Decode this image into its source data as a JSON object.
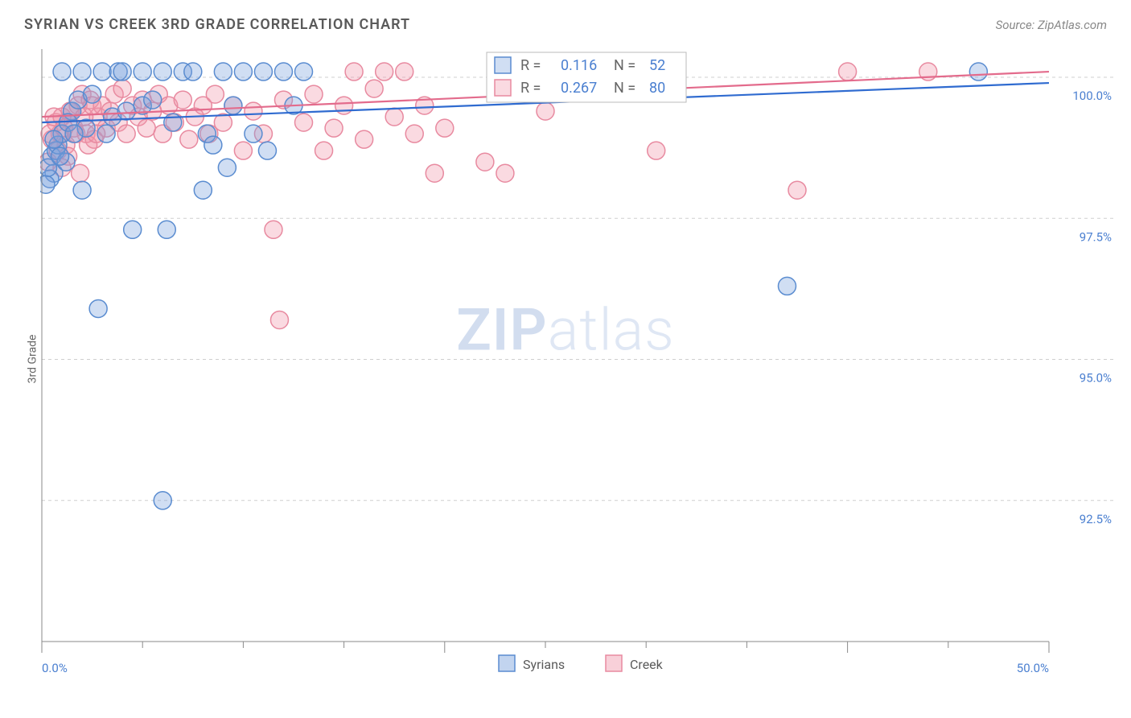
{
  "title": "SYRIAN VS CREEK 3RD GRADE CORRELATION CHART",
  "source": "Source: ZipAtlas.com",
  "ylabel": "3rd Grade",
  "watermark_a": "ZIP",
  "watermark_b": "atlas",
  "chart": {
    "type": "scatter",
    "xlim": [
      0,
      50
    ],
    "ylim": [
      90,
      100.5
    ],
    "x_ticks_major": [
      0,
      20,
      40,
      50
    ],
    "x_ticks_minor": [
      5,
      10,
      15,
      25,
      30,
      35,
      45
    ],
    "x_tick_labels": [
      {
        "v": 0,
        "t": "0.0%"
      },
      {
        "v": 50,
        "t": "50.0%"
      }
    ],
    "y_gridlines": [
      92.5,
      95.0,
      97.5,
      100.0
    ],
    "y_tick_labels": [
      {
        "v": 92.5,
        "t": "92.5%"
      },
      {
        "v": 95.0,
        "t": "95.0%"
      },
      {
        "v": 97.5,
        "t": "97.5%"
      },
      {
        "v": 100.0,
        "t": "100.0%"
      }
    ],
    "background_color": "#ffffff",
    "grid_color": "#d0d0d0",
    "axis_color": "#8a8a8a",
    "tick_label_color": "#4a7fd0",
    "marker_radius": 11,
    "marker_stroke_width": 1.5,
    "series": [
      {
        "name": "Syrians",
        "fill": "rgba(120,160,220,0.35)",
        "stroke": "#5a8cd0",
        "line_color": "#2f6bd0",
        "line_width": 2.2,
        "trend": {
          "y_at_xmin": 99.2,
          "y_at_xmax": 99.9
        },
        "R": "0.116",
        "N": "52",
        "points": [
          [
            0.5,
            98.6
          ],
          [
            0.6,
            98.3
          ],
          [
            0.7,
            98.7
          ],
          [
            0.8,
            98.8
          ],
          [
            1.0,
            99.0
          ],
          [
            1.0,
            100.1
          ],
          [
            1.2,
            98.5
          ],
          [
            1.5,
            99.4
          ],
          [
            1.8,
            99.6
          ],
          [
            2.0,
            98.0
          ],
          [
            2.0,
            100.1
          ],
          [
            2.2,
            99.1
          ],
          [
            2.5,
            99.7
          ],
          [
            2.8,
            95.9
          ],
          [
            3.0,
            100.1
          ],
          [
            3.2,
            99.0
          ],
          [
            3.5,
            99.3
          ],
          [
            3.8,
            100.1
          ],
          [
            4.0,
            100.1
          ],
          [
            4.2,
            99.4
          ],
          [
            4.5,
            97.3
          ],
          [
            5.0,
            100.1
          ],
          [
            5.0,
            99.5
          ],
          [
            5.5,
            99.6
          ],
          [
            6.0,
            100.1
          ],
          [
            6.0,
            92.5
          ],
          [
            6.2,
            97.3
          ],
          [
            6.5,
            99.2
          ],
          [
            7.0,
            100.1
          ],
          [
            7.5,
            100.1
          ],
          [
            8.0,
            98.0
          ],
          [
            8.2,
            99.0
          ],
          [
            8.5,
            98.8
          ],
          [
            9.0,
            100.1
          ],
          [
            9.2,
            98.4
          ],
          [
            9.5,
            99.5
          ],
          [
            10.0,
            100.1
          ],
          [
            10.5,
            99.0
          ],
          [
            11.0,
            100.1
          ],
          [
            11.2,
            98.7
          ],
          [
            12.0,
            100.1
          ],
          [
            12.5,
            99.5
          ],
          [
            13.0,
            100.1
          ],
          [
            0.4,
            98.2
          ],
          [
            0.3,
            98.4
          ],
          [
            0.6,
            98.9
          ],
          [
            1.3,
            99.2
          ],
          [
            1.6,
            99.0
          ],
          [
            37.0,
            96.3
          ],
          [
            46.5,
            100.1
          ],
          [
            0.2,
            98.1
          ],
          [
            0.9,
            98.6
          ]
        ]
      },
      {
        "name": "Creek",
        "fill": "rgba(240,150,170,0.35)",
        "stroke": "#e88aa0",
        "line_color": "#e36b8c",
        "line_width": 2.2,
        "trend": {
          "y_at_xmin": 99.3,
          "y_at_xmax": 100.1
        },
        "R": "0.267",
        "N": "80",
        "points": [
          [
            0.3,
            98.5
          ],
          [
            0.5,
            98.9
          ],
          [
            0.7,
            99.2
          ],
          [
            0.9,
            99.0
          ],
          [
            1.0,
            99.3
          ],
          [
            1.2,
            98.8
          ],
          [
            1.4,
            99.4
          ],
          [
            1.6,
            99.1
          ],
          [
            1.8,
            99.5
          ],
          [
            2.0,
            99.7
          ],
          [
            2.2,
            99.0
          ],
          [
            2.4,
            99.6
          ],
          [
            2.6,
            98.9
          ],
          [
            2.8,
            99.3
          ],
          [
            3.0,
            99.5
          ],
          [
            3.2,
            99.1
          ],
          [
            3.4,
            99.4
          ],
          [
            3.6,
            99.7
          ],
          [
            3.8,
            99.2
          ],
          [
            4.0,
            99.8
          ],
          [
            4.2,
            99.0
          ],
          [
            4.5,
            99.5
          ],
          [
            4.8,
            99.3
          ],
          [
            5.0,
            99.6
          ],
          [
            5.2,
            99.1
          ],
          [
            5.5,
            99.4
          ],
          [
            5.8,
            99.7
          ],
          [
            6.0,
            99.0
          ],
          [
            6.3,
            99.5
          ],
          [
            6.6,
            99.2
          ],
          [
            7.0,
            99.6
          ],
          [
            7.3,
            98.9
          ],
          [
            7.6,
            99.3
          ],
          [
            8.0,
            99.5
          ],
          [
            8.3,
            99.0
          ],
          [
            8.6,
            99.7
          ],
          [
            9.0,
            99.2
          ],
          [
            9.5,
            99.5
          ],
          [
            10.0,
            98.7
          ],
          [
            10.5,
            99.4
          ],
          [
            11.0,
            99.0
          ],
          [
            11.5,
            97.3
          ],
          [
            11.8,
            95.7
          ],
          [
            12.0,
            99.6
          ],
          [
            13.0,
            99.2
          ],
          [
            13.5,
            99.7
          ],
          [
            14.0,
            98.7
          ],
          [
            14.5,
            99.1
          ],
          [
            15.0,
            99.5
          ],
          [
            15.5,
            100.1
          ],
          [
            16.0,
            98.9
          ],
          [
            16.5,
            99.8
          ],
          [
            17.0,
            100.1
          ],
          [
            17.5,
            99.3
          ],
          [
            18.0,
            100.1
          ],
          [
            18.5,
            99.0
          ],
          [
            19.0,
            99.5
          ],
          [
            19.5,
            98.3
          ],
          [
            20.0,
            99.1
          ],
          [
            22.0,
            98.5
          ],
          [
            23.0,
            98.3
          ],
          [
            24.0,
            99.8
          ],
          [
            25.0,
            99.4
          ],
          [
            30.5,
            98.7
          ],
          [
            37.5,
            98.0
          ],
          [
            40.0,
            100.1
          ],
          [
            44.0,
            100.1
          ],
          [
            0.4,
            99.0
          ],
          [
            0.6,
            99.3
          ],
          [
            0.8,
            98.7
          ],
          [
            1.1,
            99.1
          ],
          [
            1.3,
            98.6
          ],
          [
            1.5,
            99.4
          ],
          [
            1.7,
            99.0
          ],
          [
            2.1,
            99.3
          ],
          [
            2.3,
            98.8
          ],
          [
            2.5,
            99.5
          ],
          [
            2.7,
            99.0
          ],
          [
            1.0,
            98.4
          ],
          [
            1.9,
            98.3
          ]
        ]
      }
    ],
    "legend": {
      "items": [
        {
          "label": "Syrians",
          "fill": "rgba(120,160,220,0.45)",
          "stroke": "#5a8cd0"
        },
        {
          "label": "Creek",
          "fill": "rgba(240,150,170,0.45)",
          "stroke": "#e88aa0"
        }
      ]
    }
  }
}
